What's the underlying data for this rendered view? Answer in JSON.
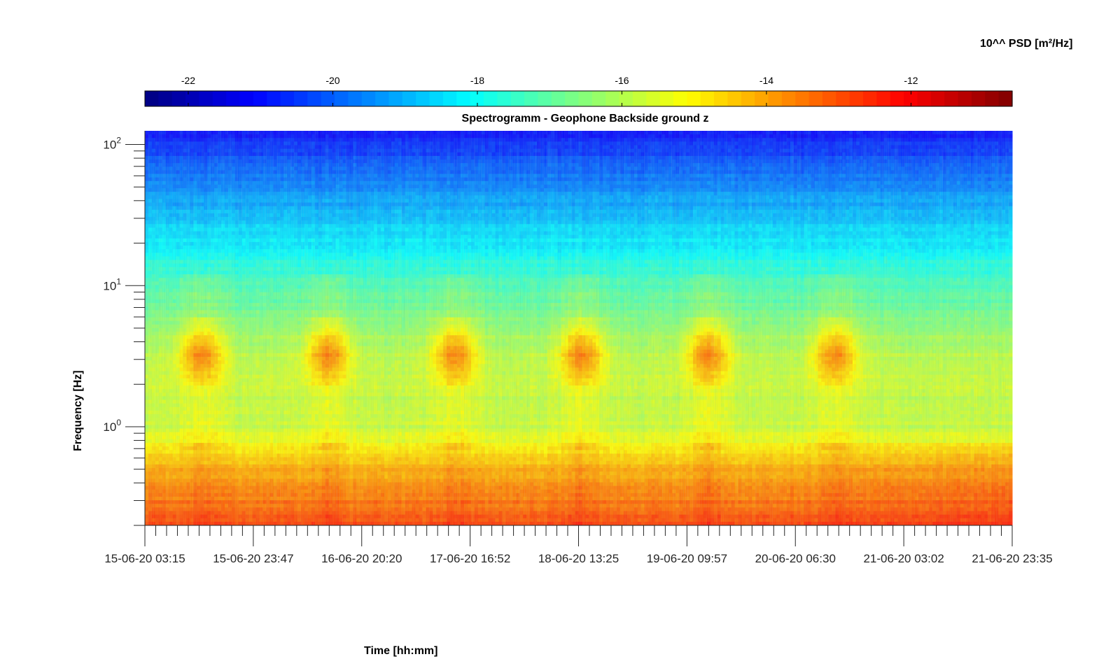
{
  "chart_data": {
    "type": "heatmap",
    "title": "Spectrogramm - Geophone Backside ground z",
    "xlabel": "Time [hh:mm]",
    "ylabel": "Frequency [Hz]",
    "x_tick_labels": [
      "15-06-20 03:15",
      "15-06-20 23:47",
      "16-06-20 20:20",
      "17-06-20 16:52",
      "18-06-20 13:25",
      "19-06-20 09:57",
      "20-06-20 06:30",
      "21-06-20 03:02",
      "21-06-20 23:35"
    ],
    "y_scale": "log",
    "ylim": [
      0.2,
      125
    ],
    "y_ticks": [
      {
        "base": "10",
        "exp": "2",
        "value": 100
      },
      {
        "base": "10",
        "exp": "1",
        "value": 10
      },
      {
        "base": "10",
        "exp": "0",
        "value": 1
      }
    ],
    "colorbar": {
      "label": "10^^ PSD [m²/Hz]",
      "location": "top",
      "range": [
        -22.6,
        -10.6
      ],
      "ticks": [
        "-22",
        "-20",
        "-18",
        "-16",
        "-14",
        "-12"
      ],
      "tick_values": [
        -22,
        -20,
        -18,
        -16,
        -14,
        -12
      ],
      "colormap": "jet"
    },
    "daily_peak_times": [
      "15-06-20 14:00",
      "16-06-20 14:00",
      "17-06-20 14:00",
      "18-06-20 14:00",
      "19-06-20 14:00",
      "20-06-20 14:00"
    ],
    "approx_psd_profile_log10": [
      {
        "freq_hz": 120,
        "value": -21.0
      },
      {
        "freq_hz": 50,
        "value": -19.5
      },
      {
        "freq_hz": 20,
        "value": -18.3
      },
      {
        "freq_hz": 10,
        "value": -17.3
      },
      {
        "freq_hz": 3,
        "value": -15.8
      },
      {
        "freq_hz": 1,
        "value": -15.8
      },
      {
        "freq_hz": 0.5,
        "value": -14.2
      },
      {
        "freq_hz": 0.2,
        "value": -12.9
      }
    ]
  }
}
